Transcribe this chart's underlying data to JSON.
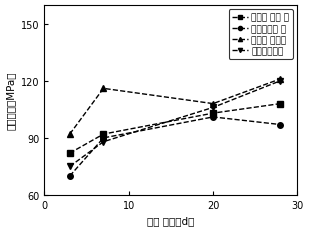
{
  "x": [
    3,
    7,
    20,
    28
  ],
  "series": [
    {
      "label": "水胶比 聚丙 烯",
      "y": [
        82,
        92,
        103,
        108
      ],
      "marker": "s",
      "linestyle": "--"
    },
    {
      "label": "水用量聚丙 烯",
      "y": [
        70,
        90,
        101,
        97
      ],
      "marker": "o",
      "linestyle": "--"
    },
    {
      "label": "水胶比 无纤维",
      "y": [
        92,
        116,
        108,
        121
      ],
      "marker": "^",
      "linestyle": "--"
    },
    {
      "label": "水用量无纤维",
      "y": [
        75,
        88,
        106,
        120
      ],
      "marker": "v",
      "linestyle": "--"
    }
  ],
  "xlabel": "养护 天数（d）",
  "ylabel": "抗压强度（MPa）",
  "xlim": [
    0,
    30
  ],
  "ylim": [
    60,
    160
  ],
  "yticks": [
    60,
    90,
    120,
    150
  ],
  "xticks": [
    0,
    10,
    20,
    30
  ],
  "color": "black",
  "linewidth": 1.0,
  "markersize": 4,
  "legend_fontsize": 6.5,
  "axis_fontsize": 7.5,
  "tick_fontsize": 7
}
